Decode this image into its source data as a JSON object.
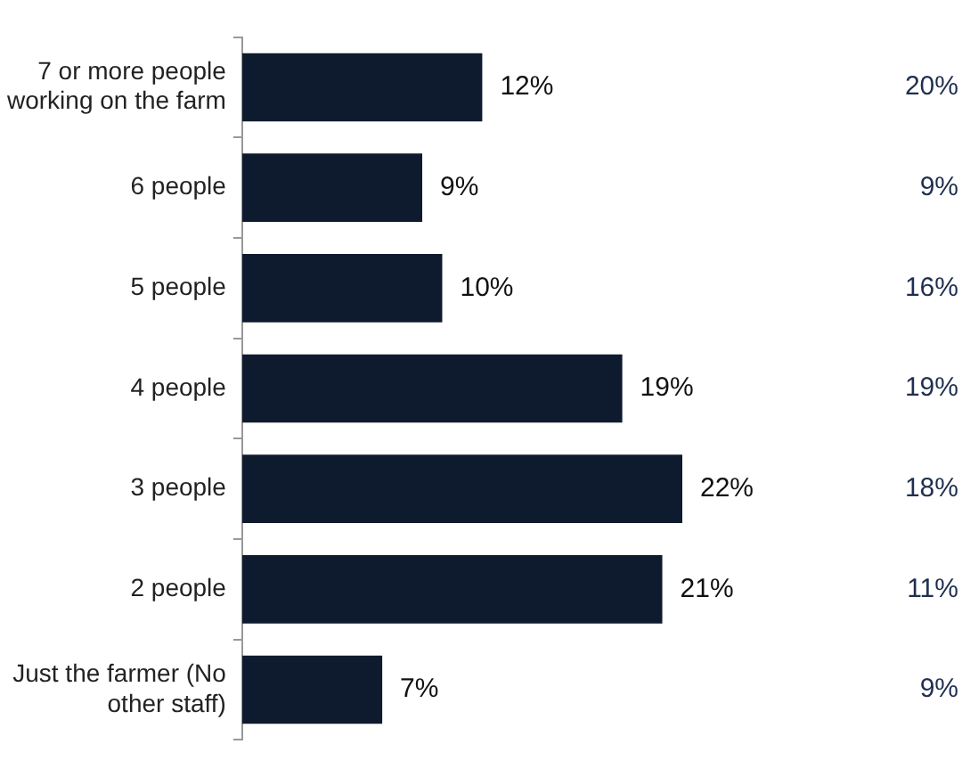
{
  "chart_data": {
    "type": "bar",
    "orientation": "horizontal",
    "categories": [
      "7 or more people working on the farm",
      "6 people",
      "5 people",
      "4 people",
      "3 people",
      "2 people",
      "Just the farmer (No other staff)"
    ],
    "values": [
      12,
      9,
      10,
      19,
      22,
      21,
      7
    ],
    "color": "#0e1a2e",
    "value_labels": [
      "12%",
      "9%",
      "10%",
      "19%",
      "22%",
      "21%",
      "7%"
    ],
    "tick_labels": "y",
    "grid": false,
    "legend": false,
    "annotations": [
      "20%",
      "9%",
      "16%",
      "19%",
      "18%",
      "11%",
      "9%"
    ]
  }
}
